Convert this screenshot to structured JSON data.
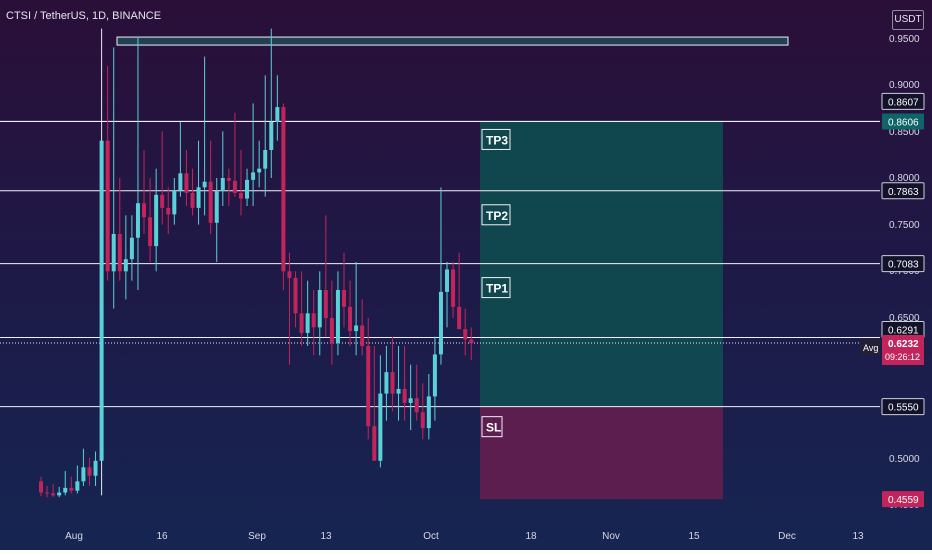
{
  "header": {
    "title": "CTSI / TetherUS, 1D, BINANCE",
    "unit": "USDT"
  },
  "colors": {
    "up": "#5ad1d6",
    "down": "#c2255c",
    "tp_zone": "#104a50",
    "sl_zone": "#601e4f",
    "price_badge": "#c2255c",
    "tp_badge": "#0e6468"
  },
  "chart_data": {
    "type": "candlestick",
    "title": "CTSI / TetherUS, 1D, BINANCE",
    "y_axis": {
      "ticks": [
        "0.9500",
        "0.9000",
        "0.8500",
        "0.8000",
        "0.7500",
        "0.7000",
        "0.6500",
        "0.5500",
        "0.5000",
        "0.4500"
      ],
      "range": [
        0.44,
        0.99
      ],
      "unit": "USDT"
    },
    "x_axis": {
      "ticks": [
        "Aug",
        "16",
        "Sep",
        "13",
        "Oct",
        "18",
        "Nov",
        "15",
        "Dec",
        "13"
      ]
    },
    "levels": [
      {
        "label": "",
        "value": 0.8606,
        "badge": "0.8606",
        "style": "teal"
      },
      {
        "label": "",
        "value": 0.8607,
        "badge": "0.8607",
        "style": "white"
      },
      {
        "label": "",
        "value": 0.7863,
        "badge": "0.7863",
        "style": "white"
      },
      {
        "label": "",
        "value": 0.7083,
        "badge": "0.7083",
        "style": "white"
      },
      {
        "label": "",
        "value": 0.6291,
        "badge": "0.6291",
        "style": "white"
      },
      {
        "label": "Avg",
        "value": 0.6234,
        "badge": "0.6234",
        "style": "dark"
      },
      {
        "label": "",
        "value": 0.555,
        "badge": "0.5550",
        "style": "white"
      },
      {
        "label": "",
        "value": 0.4559,
        "badge": "0.4559",
        "style": "red"
      }
    ],
    "current_price": {
      "value": "0.6232",
      "countdown": "09:26:12"
    },
    "zones": {
      "targets": [
        "TP3",
        "TP2",
        "TP1"
      ],
      "stop": "SL",
      "tp_top": 0.8606,
      "entry": 0.555,
      "sl_bottom": 0.4559
    },
    "resistance_box": {
      "low": 0.9455,
      "high": 0.951
    },
    "candles": [
      [
        0.475,
        0.48,
        0.459,
        0.463
      ],
      [
        0.463,
        0.47,
        0.458,
        0.462
      ],
      [
        0.462,
        0.472,
        0.458,
        0.46
      ],
      [
        0.46,
        0.469,
        0.458,
        0.463
      ],
      [
        0.463,
        0.486,
        0.46,
        0.468
      ],
      [
        0.468,
        0.48,
        0.462,
        0.465
      ],
      [
        0.465,
        0.492,
        0.462,
        0.475
      ],
      [
        0.475,
        0.51,
        0.47,
        0.49
      ],
      [
        0.49,
        0.5,
        0.47,
        0.481
      ],
      [
        0.481,
        0.507,
        0.47,
        0.497
      ],
      [
        0.497,
        0.96,
        0.46,
        0.84
      ],
      [
        0.84,
        0.92,
        0.69,
        0.7
      ],
      [
        0.7,
        0.94,
        0.66,
        0.74
      ],
      [
        0.74,
        0.8,
        0.69,
        0.7
      ],
      [
        0.7,
        0.76,
        0.67,
        0.713
      ],
      [
        0.713,
        0.76,
        0.69,
        0.736
      ],
      [
        0.736,
        0.95,
        0.68,
        0.773
      ],
      [
        0.773,
        0.83,
        0.74,
        0.758
      ],
      [
        0.758,
        0.8,
        0.71,
        0.727
      ],
      [
        0.727,
        0.81,
        0.7,
        0.782
      ],
      [
        0.782,
        0.85,
        0.75,
        0.768
      ],
      [
        0.768,
        0.79,
        0.74,
        0.761
      ],
      [
        0.761,
        0.8,
        0.75,
        0.787
      ],
      [
        0.787,
        0.86,
        0.78,
        0.805
      ],
      [
        0.805,
        0.83,
        0.77,
        0.784
      ],
      [
        0.784,
        0.81,
        0.76,
        0.768
      ],
      [
        0.768,
        0.84,
        0.75,
        0.79
      ],
      [
        0.79,
        0.93,
        0.76,
        0.796
      ],
      [
        0.796,
        0.84,
        0.74,
        0.752
      ],
      [
        0.752,
        0.8,
        0.71,
        0.786
      ],
      [
        0.786,
        0.85,
        0.77,
        0.8
      ],
      [
        0.8,
        0.81,
        0.77,
        0.797
      ],
      [
        0.797,
        0.87,
        0.78,
        0.784
      ],
      [
        0.784,
        0.83,
        0.76,
        0.778
      ],
      [
        0.778,
        0.81,
        0.77,
        0.798
      ],
      [
        0.798,
        0.88,
        0.77,
        0.806
      ],
      [
        0.806,
        0.84,
        0.79,
        0.81
      ],
      [
        0.81,
        0.91,
        0.78,
        0.83
      ],
      [
        0.83,
        0.96,
        0.8,
        0.86
      ],
      [
        0.86,
        0.91,
        0.84,
        0.876
      ],
      [
        0.876,
        0.88,
        0.68,
        0.7
      ],
      [
        0.7,
        0.72,
        0.6,
        0.693
      ],
      [
        0.693,
        0.7,
        0.64,
        0.655
      ],
      [
        0.655,
        0.7,
        0.62,
        0.634
      ],
      [
        0.634,
        0.69,
        0.62,
        0.655
      ],
      [
        0.655,
        0.68,
        0.61,
        0.64
      ],
      [
        0.64,
        0.7,
        0.61,
        0.68
      ],
      [
        0.68,
        0.76,
        0.63,
        0.65
      ],
      [
        0.65,
        0.69,
        0.6,
        0.623
      ],
      [
        0.623,
        0.7,
        0.61,
        0.68
      ],
      [
        0.68,
        0.72,
        0.64,
        0.662
      ],
      [
        0.662,
        0.69,
        0.62,
        0.636
      ],
      [
        0.636,
        0.71,
        0.61,
        0.642
      ],
      [
        0.642,
        0.67,
        0.61,
        0.62
      ],
      [
        0.62,
        0.65,
        0.52,
        0.534
      ],
      [
        0.534,
        0.62,
        0.5,
        0.497
      ],
      [
        0.497,
        0.61,
        0.49,
        0.569
      ],
      [
        0.569,
        0.62,
        0.54,
        0.592
      ],
      [
        0.592,
        0.63,
        0.55,
        0.569
      ],
      [
        0.569,
        0.62,
        0.54,
        0.574
      ],
      [
        0.574,
        0.62,
        0.54,
        0.559
      ],
      [
        0.559,
        0.6,
        0.53,
        0.564
      ],
      [
        0.564,
        0.6,
        0.54,
        0.549
      ],
      [
        0.549,
        0.58,
        0.52,
        0.532
      ],
      [
        0.532,
        0.59,
        0.52,
        0.566
      ],
      [
        0.566,
        0.63,
        0.54,
        0.611
      ],
      [
        0.611,
        0.79,
        0.6,
        0.678
      ],
      [
        0.678,
        0.71,
        0.64,
        0.702
      ],
      [
        0.702,
        0.71,
        0.65,
        0.662
      ],
      [
        0.662,
        0.72,
        0.64,
        0.638
      ],
      [
        0.638,
        0.66,
        0.61,
        0.627
      ],
      [
        0.627,
        0.64,
        0.605,
        0.623
      ]
    ]
  }
}
